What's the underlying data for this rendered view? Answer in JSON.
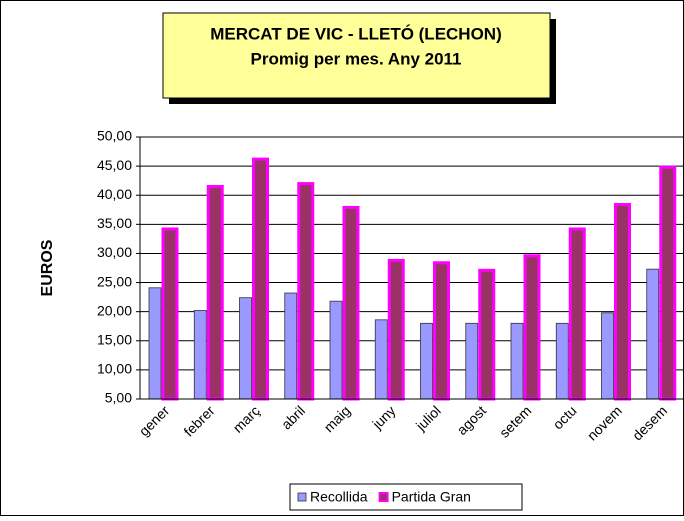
{
  "chart_data": {
    "type": "bar",
    "title": "MERCAT DE VIC - LLETÓ (LECHON)",
    "subtitle": "Promig per mes. Any 2011",
    "y_label": "EUROS",
    "categories": [
      "gener",
      "febrer",
      "març",
      "abril",
      "maig",
      "juny",
      "juliol",
      "agost",
      "setem",
      "octu",
      "novem",
      "desem"
    ],
    "series": [
      {
        "name": "Recollida",
        "color": "#9999ff",
        "values": [
          24.1,
          20.2,
          22.4,
          23.2,
          21.8,
          18.6,
          18.0,
          18.0,
          18.0,
          18.0,
          19.8,
          27.3
        ]
      },
      {
        "name": "Partida Gran",
        "color": "#993366",
        "values": [
          34.2,
          41.5,
          46.2,
          42.0,
          37.9,
          28.8,
          28.4,
          27.1,
          29.6,
          34.2,
          38.4,
          44.8
        ]
      }
    ],
    "ylim": [
      5,
      50
    ],
    "yticks": [
      {
        "value": 5,
        "label": "5,00"
      },
      {
        "value": 10,
        "label": "10,00"
      },
      {
        "value": 15,
        "label": "15,00"
      },
      {
        "value": 20,
        "label": "20,00"
      },
      {
        "value": 25,
        "label": "25,00"
      },
      {
        "value": 30,
        "label": "30,00"
      },
      {
        "value": 35,
        "label": "35,00"
      },
      {
        "value": 40,
        "label": "40,00"
      },
      {
        "value": 45,
        "label": "45,00"
      },
      {
        "value": 50,
        "label": "50,00"
      }
    ],
    "grid": true,
    "legend": "bottom"
  }
}
